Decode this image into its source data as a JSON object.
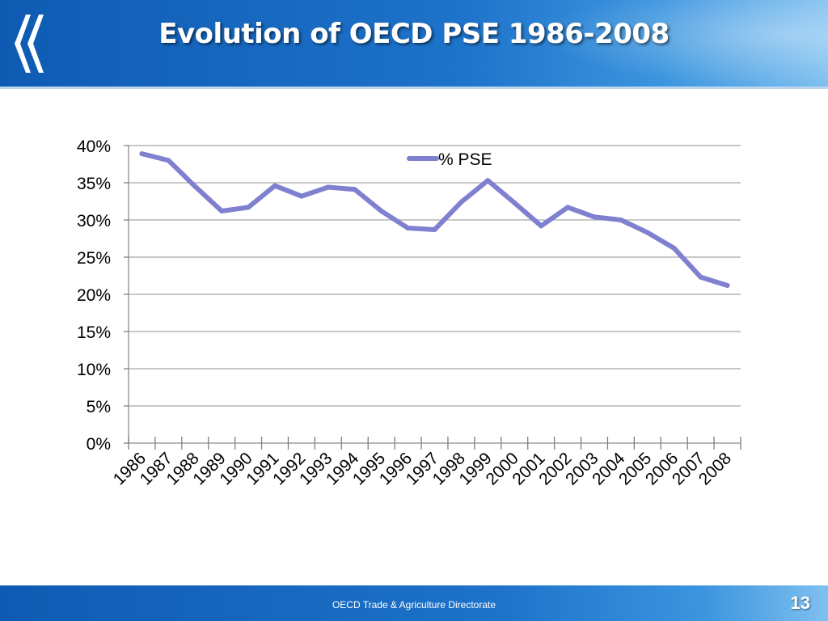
{
  "header": {
    "title": "Evolution of OECD PSE 1986-2008"
  },
  "footer": {
    "text": "OECD Trade & Agriculture Directorate",
    "page_number": "13"
  },
  "logo": {
    "icon": "oecd-chevron-logo-icon"
  },
  "colors": {
    "header_blue": "#1d72c9",
    "series": "#8080d0",
    "grid": "#a6a6a6"
  },
  "chart_data": {
    "type": "line",
    "title": "",
    "xlabel": "",
    "ylabel": "",
    "x": [
      "1986",
      "1987",
      "1988",
      "1989",
      "1990",
      "1991",
      "1992",
      "1993",
      "1994",
      "1995",
      "1996",
      "1997",
      "1998",
      "1999",
      "2000",
      "2001",
      "2002",
      "2003",
      "2004",
      "2005",
      "2006",
      "2007",
      "2008"
    ],
    "series": [
      {
        "name": "% PSE",
        "values": [
          38.9,
          38.0,
          34.5,
          31.2,
          31.7,
          34.6,
          33.2,
          34.4,
          34.1,
          31.2,
          28.9,
          28.7,
          32.4,
          35.3,
          32.3,
          29.2,
          31.7,
          30.4,
          30.0,
          28.3,
          26.2,
          22.3,
          21.2
        ]
      }
    ],
    "y_ticks": [
      "0%",
      "5%",
      "10%",
      "15%",
      "20%",
      "25%",
      "30%",
      "35%",
      "40%"
    ],
    "ylim": [
      0,
      40
    ],
    "grid": true,
    "legend": "top-center"
  }
}
